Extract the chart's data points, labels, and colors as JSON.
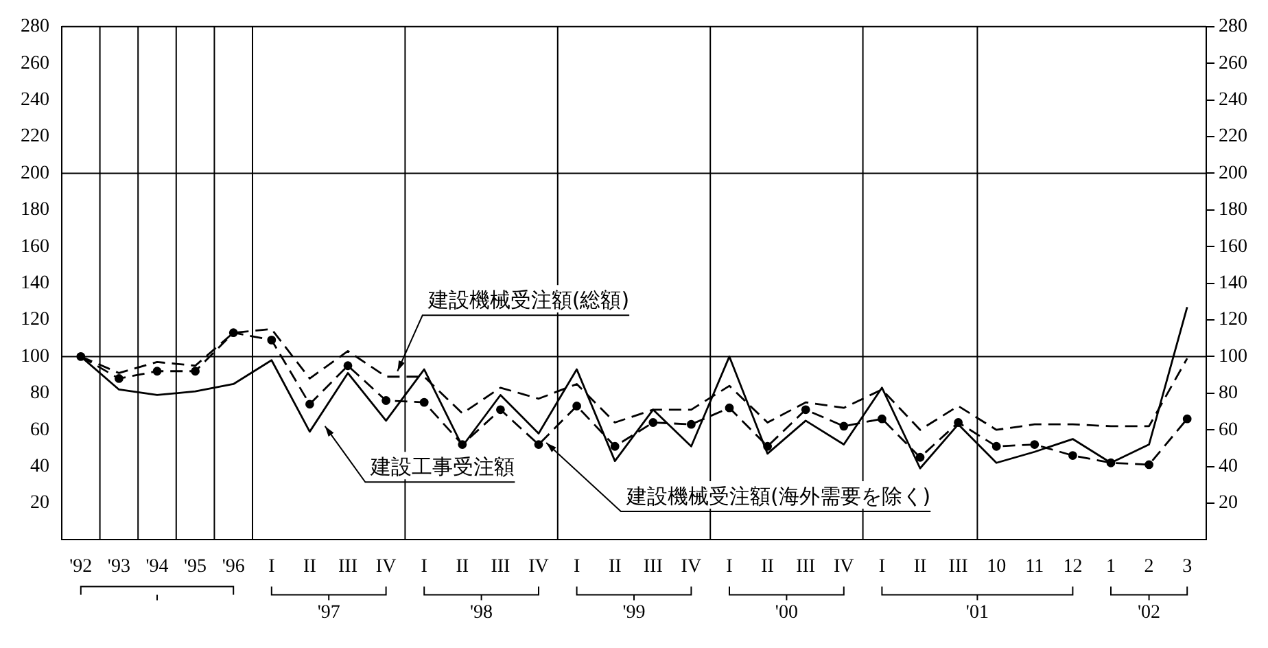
{
  "chart_data": {
    "type": "line",
    "categories": [
      "'92",
      "'93",
      "'94",
      "'95",
      "'96",
      "I",
      "II",
      "III",
      "IV",
      "I",
      "II",
      "III",
      "IV",
      "I",
      "II",
      "III",
      "IV",
      "I",
      "II",
      "III",
      "IV",
      "I",
      "II",
      "III",
      "10",
      "11",
      "12",
      "1",
      "2",
      "3"
    ],
    "series": [
      {
        "name": "建設機械受注額(総額)",
        "color": "#000000",
        "line_style": "dashed",
        "marker": "none",
        "values": [
          100,
          91,
          97,
          95,
          113,
          115,
          88,
          103,
          89,
          89,
          69,
          83,
          77,
          85,
          64,
          71,
          71,
          84,
          64,
          75,
          72,
          82,
          60,
          73,
          60,
          63,
          63,
          62,
          62,
          99
        ]
      },
      {
        "name": "建設機械受注額(海外需要を除く)",
        "color": "#000000",
        "line_style": "dashed",
        "marker": "circle",
        "values": [
          100,
          88,
          92,
          92,
          113,
          109,
          74,
          95,
          76,
          75,
          52,
          71,
          52,
          73,
          51,
          64,
          63,
          72,
          51,
          71,
          62,
          66,
          45,
          64,
          51,
          52,
          46,
          42,
          41,
          66
        ]
      },
      {
        "name": "建設工事受注額",
        "color": "#000000",
        "line_style": "solid",
        "marker": "none",
        "values": [
          100,
          82,
          79,
          81,
          85,
          98,
          59,
          91,
          65,
          93,
          51,
          79,
          58,
          93,
          43,
          71,
          51,
          100,
          47,
          65,
          52,
          83,
          39,
          63,
          42,
          48,
          55,
          42,
          52,
          127
        ]
      }
    ],
    "ylim": [
      0,
      280
    ],
    "yticks": [
      20,
      40,
      60,
      80,
      100,
      120,
      140,
      160,
      180,
      200,
      220,
      240,
      260,
      280
    ],
    "y2lim": [
      0,
      280
    ],
    "y2ticks": [
      20,
      40,
      60,
      80,
      100,
      120,
      140,
      160,
      180,
      200,
      220,
      240,
      260,
      280
    ],
    "ref_lines": [
      {
        "axis": "y",
        "value": 100
      },
      {
        "axis": "y",
        "value": 200
      }
    ],
    "annotations": [
      "'97",
      "'98",
      "'99",
      "'00",
      "'01",
      "'02"
    ],
    "grid": false,
    "legend": false
  }
}
